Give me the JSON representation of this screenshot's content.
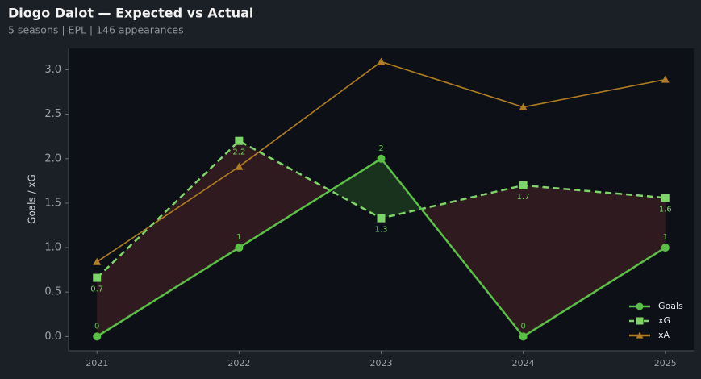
{
  "chart_data": {
    "type": "line",
    "title": "Diogo Dalot — Expected vs Actual",
    "subtitle": "5 seasons | EPL | 146 appearances",
    "y_label": "Goals / xG",
    "x": [
      2021,
      2022,
      2023,
      2024,
      2025
    ],
    "xlim": [
      2020.8,
      2025.2
    ],
    "xticks": [
      2021,
      2022,
      2023,
      2024,
      2025
    ],
    "ylim": [
      -0.16,
      3.24
    ],
    "yticks": [
      {
        "value": 0,
        "label": "0.0"
      },
      0.5,
      {
        "value": 1,
        "label": "1.0"
      },
      1.5,
      {
        "value": 2,
        "label": "2.0"
      },
      2.5,
      {
        "value": 3,
        "label": "3.0"
      }
    ],
    "legend": "lower right",
    "series": [
      {
        "name": "Goals",
        "color": "#5cbf47",
        "marker": "circle",
        "dashed": false,
        "values": [
          0,
          1,
          2,
          0,
          1
        ]
      },
      {
        "name": "xG",
        "color": "#7fd46a",
        "marker": "square",
        "dashed": true,
        "values": [
          0.66,
          2.2,
          1.33,
          1.7,
          1.56
        ],
        "value_labels": [
          "0.7",
          "2.2",
          "1.3",
          "1.7",
          "1.6"
        ]
      },
      {
        "name": "xA",
        "color": "#b07d22",
        "marker": "triangle",
        "dashed": false,
        "values": [
          0.84,
          1.91,
          3.09,
          2.58,
          2.89
        ]
      }
    ]
  }
}
